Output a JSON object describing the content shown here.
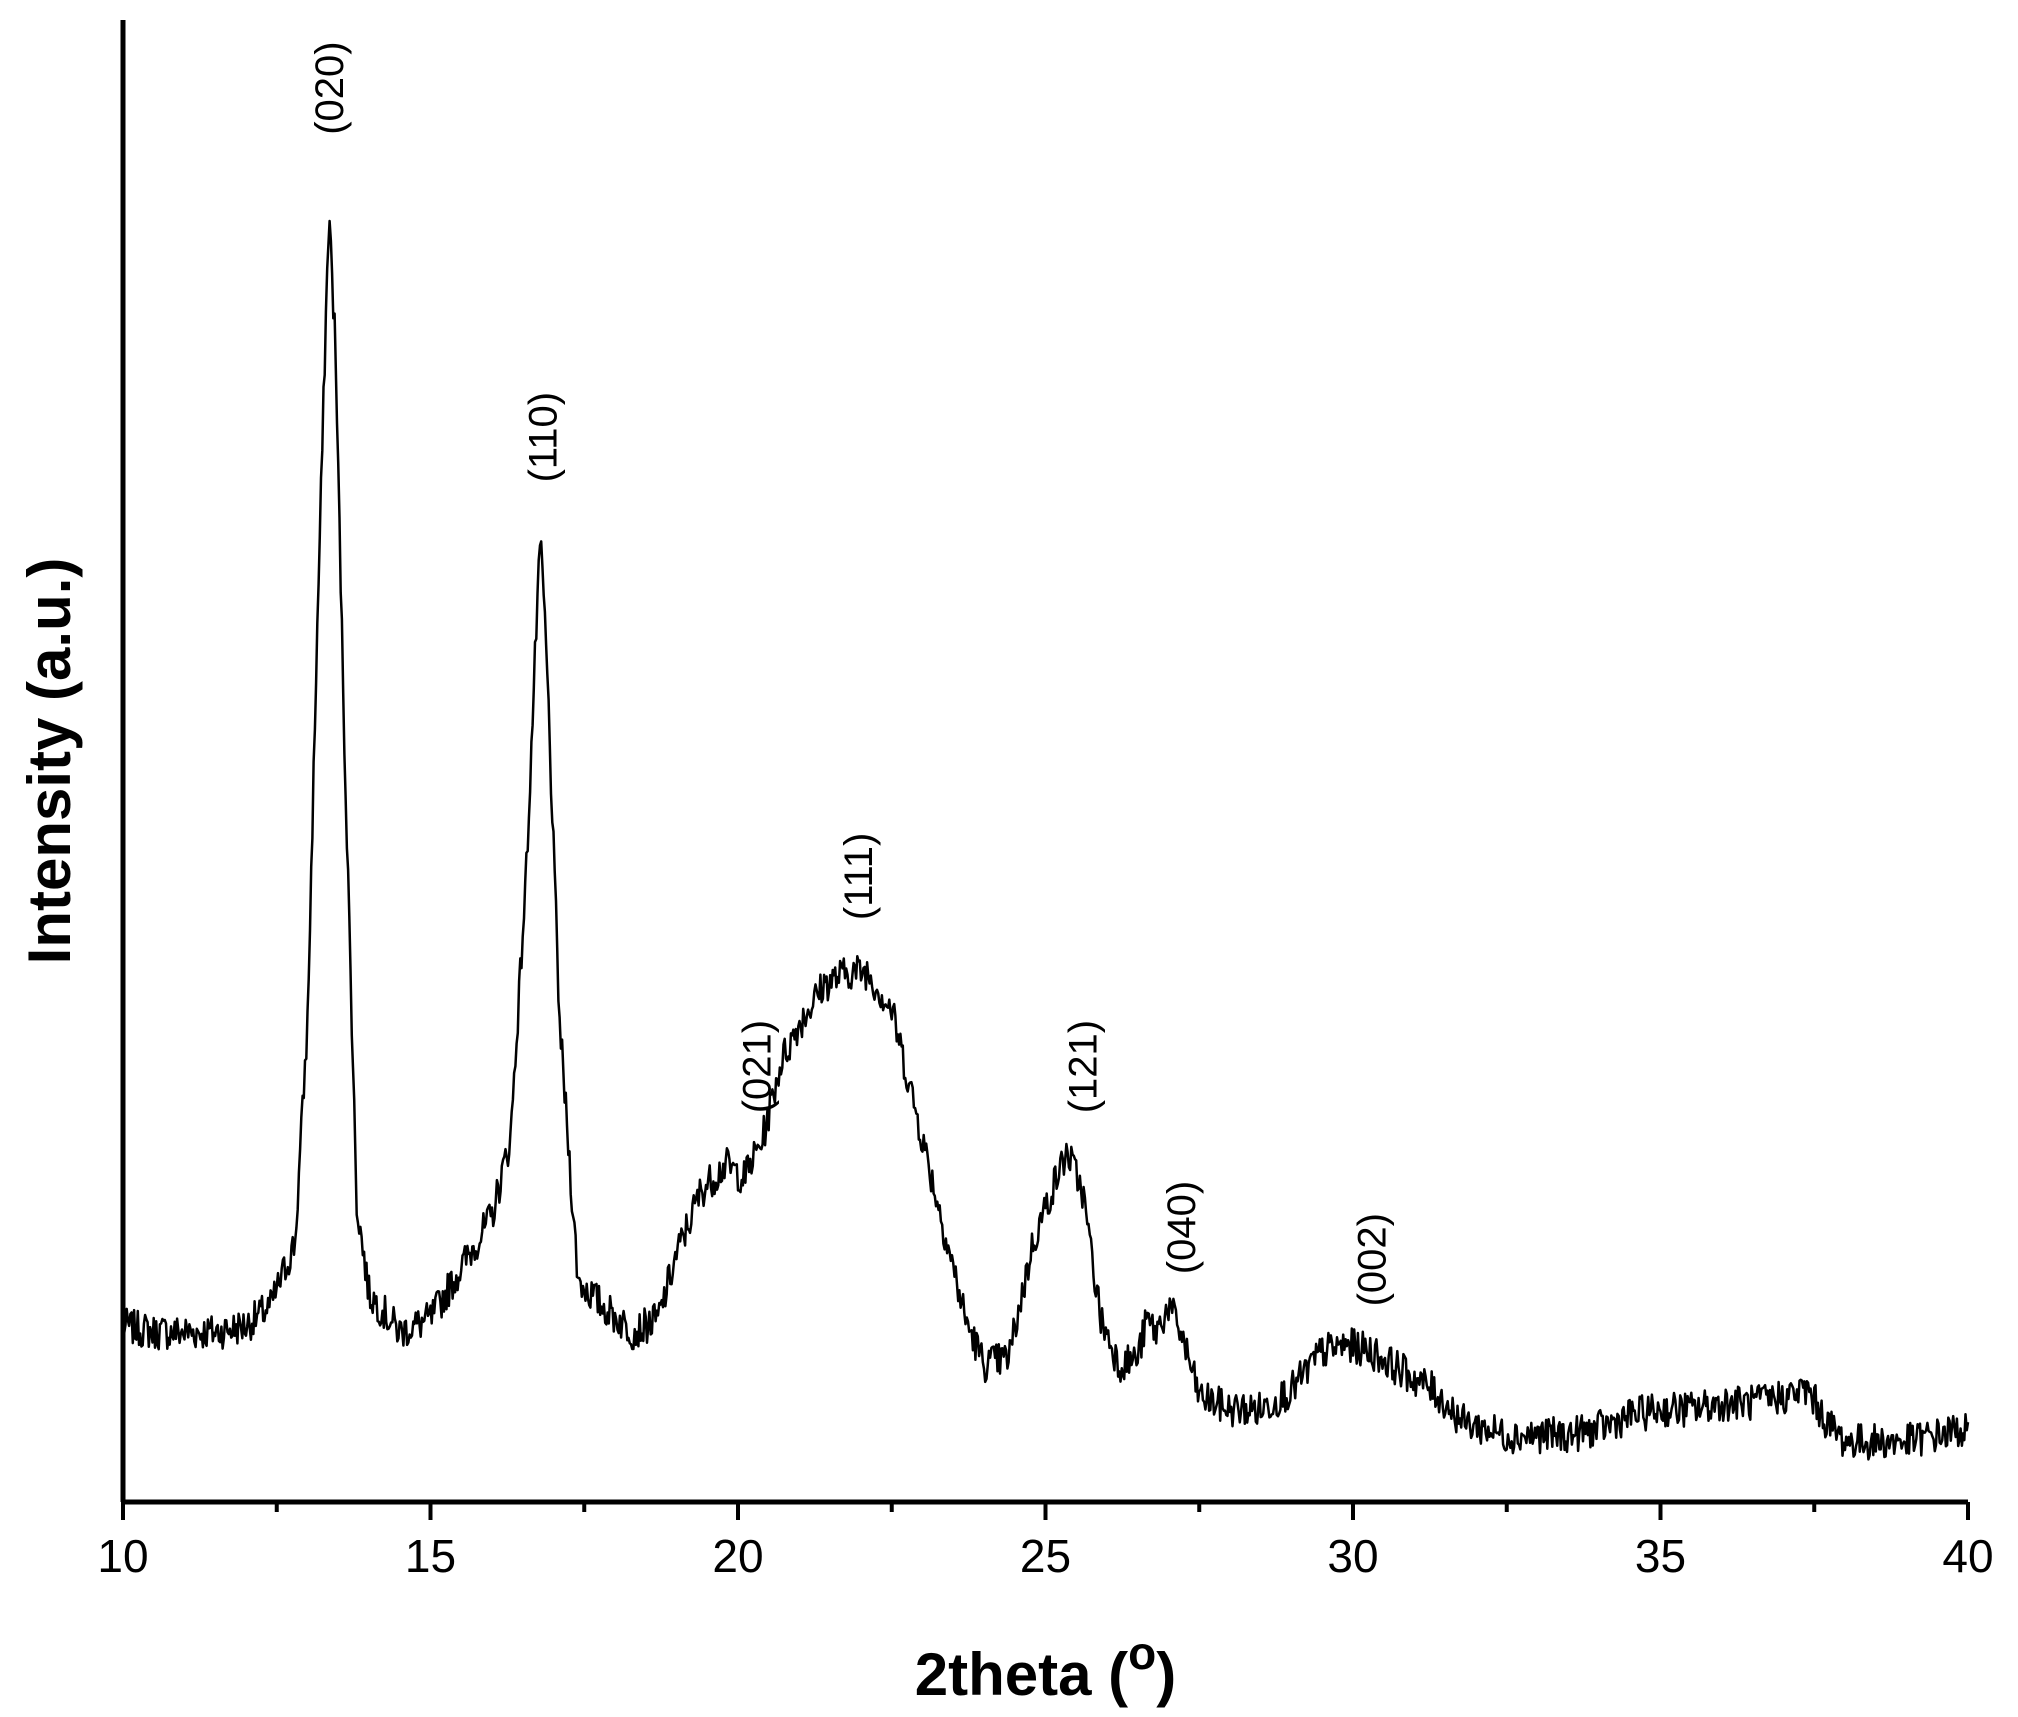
{
  "chart_data": {
    "type": "line",
    "xlabel": "2theta (",
    "xlabel_sup": "o",
    "xlabel_close": ")",
    "ylabel": "Intensity (a.u.)",
    "xlim": [
      10,
      40
    ],
    "ylim": [
      0,
      1
    ],
    "x_major_ticks": [
      "10",
      "15",
      "20",
      "25",
      "30",
      "35",
      "40"
    ],
    "x_minor_tick_values": [
      12.5,
      17.5,
      22.5,
      27.5,
      32.5,
      37.5
    ],
    "y_ticks_shown": false,
    "grid": false,
    "line_color": "#000000",
    "series": [
      {
        "x": [
          10,
          10.5,
          11,
          11.5,
          12,
          12.4,
          12.8,
          13.0,
          13.15,
          13.3,
          13.35,
          13.45,
          13.6,
          13.8,
          14.0,
          14.5,
          15.0,
          15.5,
          16.0,
          16.3,
          16.55,
          16.75,
          16.8,
          16.9,
          17.1,
          17.4,
          17.8,
          18.3,
          18.7,
          19.0,
          19.4,
          19.8,
          20.1,
          20.4,
          20.7,
          21.0,
          21.4,
          21.8,
          22.1,
          22.5,
          22.9,
          23.3,
          23.7,
          24.0,
          24.4,
          24.8,
          25.1,
          25.35,
          25.6,
          25.9,
          26.2,
          26.5,
          26.65,
          26.8,
          27.0,
          27.2,
          27.5,
          28.0,
          28.5,
          29.0,
          29.5,
          29.9,
          30.3,
          30.8,
          31.3,
          31.8,
          32.5,
          33.0,
          33.5,
          34.0,
          34.5,
          35.0,
          35.5,
          36.0,
          36.5,
          37.0,
          37.4,
          37.7,
          38.0,
          38.5,
          39.0,
          39.5,
          40.0
        ],
        "values": [
          0.095,
          0.09,
          0.09,
          0.09,
          0.095,
          0.11,
          0.16,
          0.33,
          0.62,
          0.88,
          0.96,
          0.86,
          0.55,
          0.19,
          0.12,
          0.09,
          0.1,
          0.14,
          0.18,
          0.24,
          0.44,
          0.67,
          0.7,
          0.6,
          0.33,
          0.13,
          0.11,
          0.09,
          0.1,
          0.15,
          0.2,
          0.22,
          0.21,
          0.24,
          0.3,
          0.33,
          0.36,
          0.37,
          0.37,
          0.34,
          0.26,
          0.18,
          0.1,
          0.065,
          0.07,
          0.16,
          0.2,
          0.23,
          0.2,
          0.1,
          0.065,
          0.07,
          0.1,
          0.09,
          0.11,
          0.09,
          0.04,
          0.03,
          0.03,
          0.045,
          0.075,
          0.08,
          0.075,
          0.06,
          0.045,
          0.02,
          0.01,
          0.01,
          0.01,
          0.015,
          0.025,
          0.03,
          0.03,
          0.035,
          0.035,
          0.04,
          0.045,
          0.02,
          0.005,
          0.005,
          0.005,
          0.01,
          0.015
        ]
      }
    ],
    "annotations": [
      {
        "text": "(020)",
        "x": 13.35,
        "y": 1.02
      },
      {
        "text": "(110)",
        "x": 16.82,
        "y": 0.75
      },
      {
        "text": "(021)",
        "x": 20.3,
        "y": 0.26
      },
      {
        "text": "(111)",
        "x": 21.95,
        "y": 0.41
      },
      {
        "text": "(121)",
        "x": 25.6,
        "y": 0.26
      },
      {
        "text": "(040)",
        "x": 27.2,
        "y": 0.135
      },
      {
        "text": "(002)",
        "x": 30.3,
        "y": 0.11
      }
    ]
  }
}
